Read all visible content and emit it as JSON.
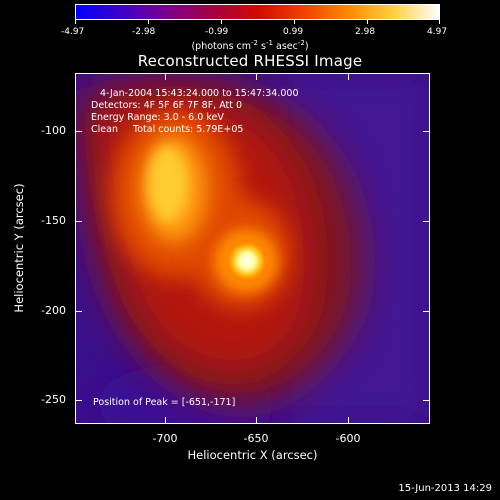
{
  "colorbar": {
    "tick_labels": [
      "-4.97",
      "-2.98",
      "-0.99",
      "0.99",
      "2.98",
      "4.97"
    ],
    "unit_main": "(photons cm",
    "unit_sup1": "-2",
    "unit_mid": " s",
    "unit_sup2": "-1",
    "unit_mid2": " asec",
    "unit_sup3": "-2",
    "unit_end": ")",
    "colors": [
      "#0000ff",
      "#3f00c8",
      "#7a0090",
      "#a40040",
      "#d10a00",
      "#f04000",
      "#ff8a00",
      "#ffd040",
      "#ffffff"
    ]
  },
  "title": "Reconstructed RHESSI Image",
  "info": {
    "line1": "4-Jan-2004 15:43:24.000 to 15:47:34.000",
    "line2": "Detectors: 4F 5F 6F 7F 8F, Att 0",
    "line3": "Energy Range: 3.0 - 6.0 keV",
    "line4": "Clean     Total counts: 5.79E+05",
    "peak": "Position of Peak = [-651,-171]"
  },
  "axes": {
    "xlabel": "Heliocentric X (arcsec)",
    "ylabel": "Heliocentric Y (arcsec)",
    "x_ticks": [
      "-700",
      "-650",
      "-600"
    ],
    "y_ticks": [
      "-100",
      "-150",
      "-200",
      "-250"
    ],
    "xlim": [
      -750,
      -555
    ],
    "ylim": [
      -263,
      -69
    ]
  },
  "timestamp": "15-Jun-2013 14:29"
}
